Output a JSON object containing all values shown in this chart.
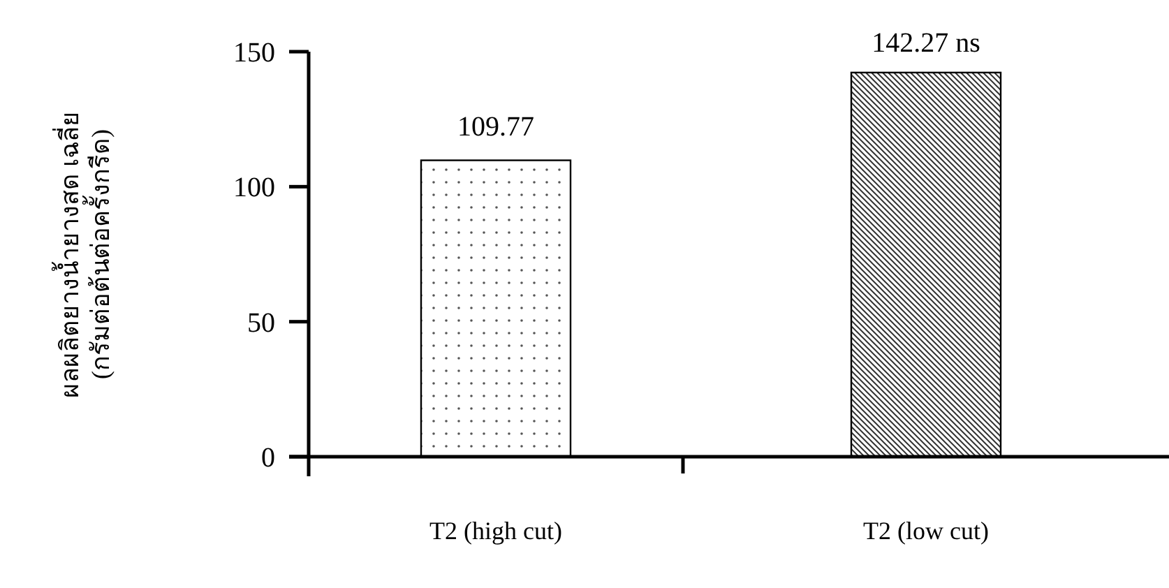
{
  "chart_data": {
    "type": "bar",
    "ylabel": "ผลผลิตยางน้ำยางสด เฉลี่ย\n(กรัมต่อต้นต่อครั้งกรีด)",
    "categories": [
      "T2 (high cut)",
      "T2 (low cut)"
    ],
    "values": [
      109.77,
      142.27
    ],
    "value_labels": [
      "109.77",
      "142.27 ns"
    ],
    "colors": [
      "#ffffff",
      "#ffffff"
    ],
    "ylim": [
      0,
      150
    ],
    "yticks": [
      0,
      50,
      100,
      150
    ],
    "grid": false
  }
}
